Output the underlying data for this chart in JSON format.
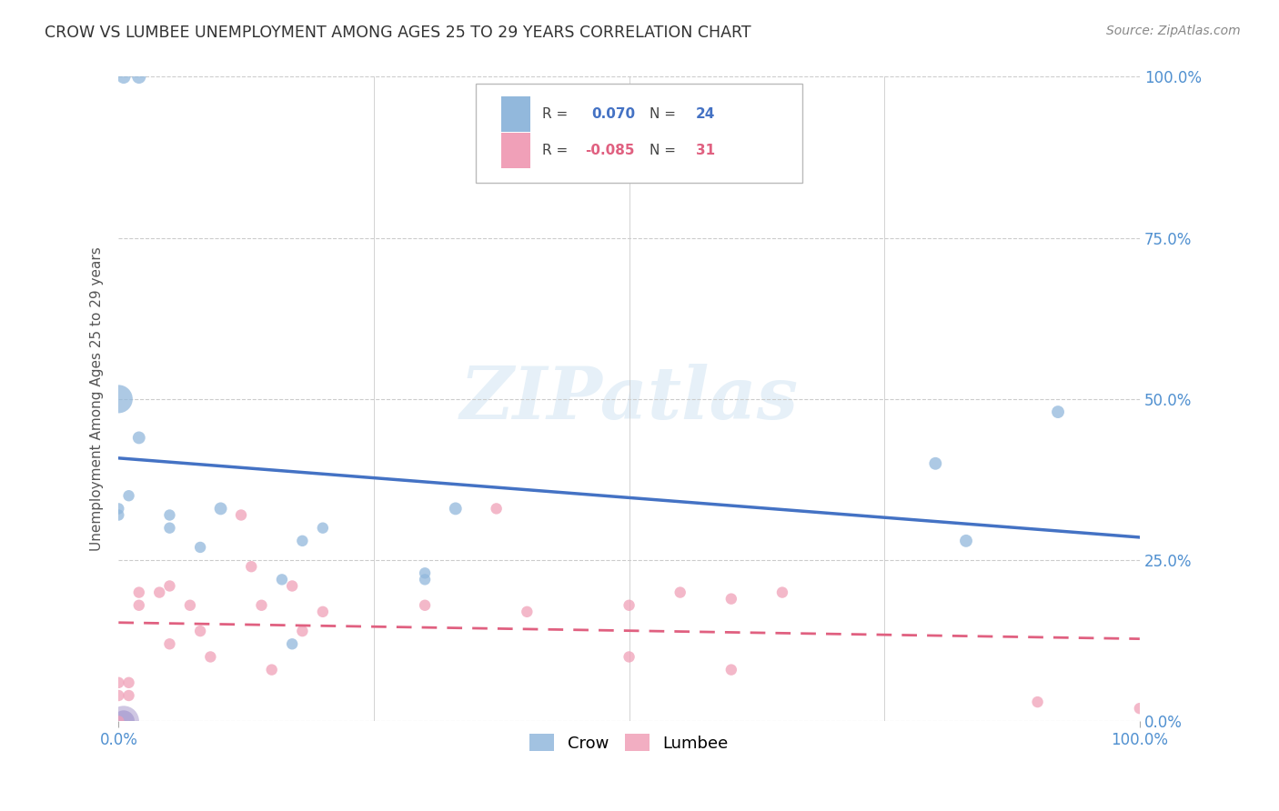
{
  "title": "CROW VS LUMBEE UNEMPLOYMENT AMONG AGES 25 TO 29 YEARS CORRELATION CHART",
  "source": "Source: ZipAtlas.com",
  "ylabel": "Unemployment Among Ages 25 to 29 years",
  "xlim": [
    0.0,
    1.0
  ],
  "ylim": [
    0.0,
    1.0
  ],
  "ytick_labels": [
    "0.0%",
    "25.0%",
    "50.0%",
    "75.0%",
    "100.0%"
  ],
  "ytick_positions": [
    0.0,
    0.25,
    0.5,
    0.75,
    1.0
  ],
  "crow_color": "#92b8dc",
  "lumbee_color": "#f0a0b8",
  "crow_line_color": "#4472c4",
  "lumbee_line_color": "#e06080",
  "crow_R": 0.07,
  "crow_N": 24,
  "lumbee_R": -0.085,
  "lumbee_N": 31,
  "background_color": "#ffffff",
  "grid_color": "#cccccc",
  "crow_x": [
    0.005,
    0.02,
    0.0,
    0.0,
    0.0,
    0.01,
    0.02,
    0.05,
    0.05,
    0.08,
    0.1,
    0.16,
    0.17,
    0.18,
    0.2,
    0.3,
    0.3,
    0.33,
    0.8,
    0.83,
    0.92
  ],
  "crow_y": [
    1.0,
    1.0,
    0.5,
    0.32,
    0.33,
    0.35,
    0.44,
    0.3,
    0.32,
    0.27,
    0.33,
    0.22,
    0.12,
    0.28,
    0.3,
    0.22,
    0.23,
    0.33,
    0.4,
    0.28,
    0.48
  ],
  "crow_s": [
    120,
    120,
    500,
    80,
    80,
    80,
    100,
    80,
    80,
    80,
    100,
    80,
    80,
    80,
    80,
    80,
    80,
    100,
    100,
    100,
    100
  ],
  "lumbee_x": [
    0.0,
    0.0,
    0.0,
    0.01,
    0.01,
    0.02,
    0.02,
    0.04,
    0.05,
    0.05,
    0.07,
    0.08,
    0.09,
    0.12,
    0.13,
    0.14,
    0.15,
    0.17,
    0.18,
    0.2,
    0.3,
    0.37,
    0.4,
    0.5,
    0.5,
    0.55,
    0.6,
    0.6,
    0.65,
    0.9,
    1.0
  ],
  "lumbee_y": [
    0.04,
    0.06,
    0.0,
    0.04,
    0.06,
    0.18,
    0.2,
    0.2,
    0.21,
    0.12,
    0.18,
    0.14,
    0.1,
    0.32,
    0.24,
    0.18,
    0.08,
    0.21,
    0.14,
    0.17,
    0.18,
    0.33,
    0.17,
    0.18,
    0.1,
    0.2,
    0.19,
    0.08,
    0.2,
    0.03,
    0.02
  ],
  "lumbee_s": [
    80,
    80,
    80,
    80,
    80,
    80,
    80,
    80,
    80,
    80,
    80,
    80,
    80,
    80,
    80,
    80,
    80,
    80,
    80,
    80,
    80,
    80,
    80,
    80,
    80,
    80,
    80,
    80,
    80,
    80,
    80
  ],
  "cluster_crow_x": [
    0.0,
    0.0,
    0.0,
    0.0,
    0.0
  ],
  "cluster_crow_y": [
    0.0,
    0.0,
    0.0,
    0.0,
    0.0
  ],
  "cluster_lumbee_x": [
    0.0,
    0.0,
    0.0,
    0.0,
    0.0
  ],
  "cluster_lumbee_y": [
    0.0,
    0.0,
    0.0,
    0.0,
    0.0
  ]
}
